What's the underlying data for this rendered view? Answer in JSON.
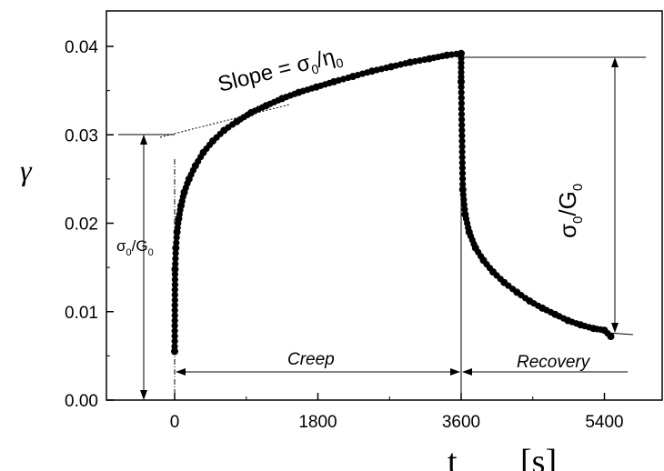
{
  "chart_data": {
    "type": "scatter",
    "title": "",
    "xlabel": {
      "symbol": "t",
      "unit": "[s]"
    },
    "ylabel": "γ",
    "xlim": [
      -900,
      6300
    ],
    "ylim": [
      0,
      0.045
    ],
    "xticks": [
      0,
      1800,
      3600,
      5400
    ],
    "yticks": [
      0.0,
      0.01,
      0.02,
      0.03,
      0.04
    ],
    "ytick_labels": [
      "0.00",
      "0.01",
      "0.02",
      "0.03",
      "0.04"
    ],
    "xtick_labels": [
      "0",
      "1800",
      "3600",
      "5400"
    ],
    "grid": false,
    "series": [
      {
        "values_x": [
          0,
          5,
          15,
          30,
          50,
          80,
          120,
          180,
          260,
          360,
          480,
          620,
          780,
          960,
          1150,
          1350,
          1560,
          1780,
          2000,
          2240,
          2480,
          2720,
          2960,
          3200,
          3420,
          3600,
          3600,
          3620,
          3650,
          3700,
          3780,
          3880,
          4000,
          4140,
          4300,
          4460,
          4620,
          4780,
          4940,
          5100,
          5260,
          5400,
          5480
        ],
        "values_y": [
          0.0055,
          0.0148,
          0.0172,
          0.019,
          0.0205,
          0.022,
          0.0235,
          0.025,
          0.0265,
          0.028,
          0.0293,
          0.0305,
          0.0315,
          0.0325,
          0.0333,
          0.0341,
          0.0348,
          0.0354,
          0.036,
          0.0366,
          0.0372,
          0.0377,
          0.0382,
          0.0386,
          0.039,
          0.0392,
          0.036,
          0.0238,
          0.021,
          0.019,
          0.0172,
          0.0158,
          0.0145,
          0.0133,
          0.0122,
          0.0112,
          0.0104,
          0.0097,
          0.009,
          0.0085,
          0.0081,
          0.0079,
          0.0072
        ]
      }
    ],
    "annotations": {
      "slope_pre": "Slope = σ",
      "slope_sub": "0",
      "slope_mid": "/η",
      "slope_sub2": "0",
      "left_sigma": "σ",
      "left_sub1": "0",
      "left_mid": "/G",
      "left_sub2": "0",
      "right_sigma": "σ",
      "right_sub1": "0",
      "right_mid": "/G",
      "right_sub2": "0",
      "creep": "Creep",
      "recovery": "Recovery"
    }
  }
}
